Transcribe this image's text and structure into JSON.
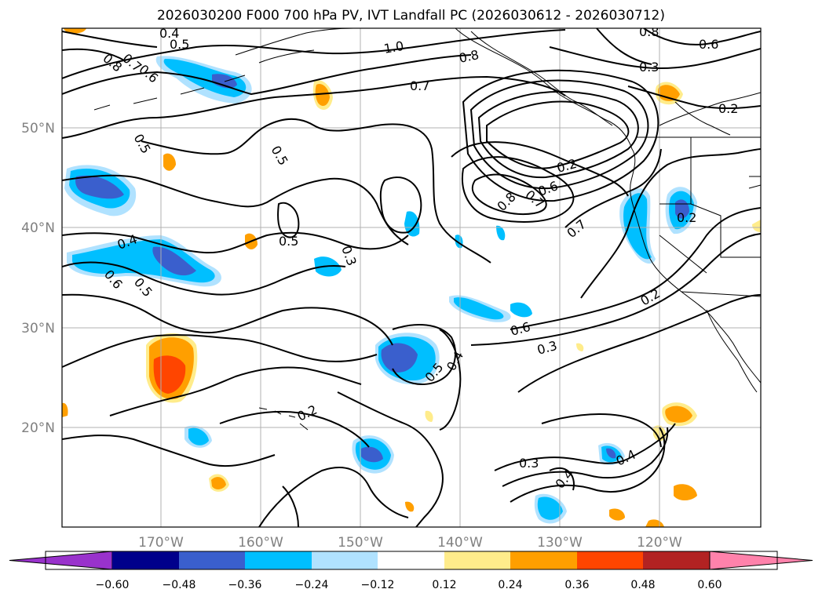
{
  "title": "2026030200 F000 700 hPa PV, IVT Landfall PC (2026030612 - 2026030712)",
  "map": {
    "lat_ticks": [
      "50°N",
      "40°N",
      "30°N",
      "20°N"
    ],
    "lon_ticks": [
      "170°W",
      "160°W",
      "150°W",
      "140°W",
      "130°W",
      "120°W"
    ],
    "contour_labels": [
      "0.4",
      "0.5",
      "0.8",
      "0.7",
      "0.6",
      "1.0",
      "0.8",
      "0.7",
      "0.8",
      "0.6",
      "0.3",
      "0.2",
      "0.5",
      "0.5",
      "0.2",
      "0.8",
      "0.7",
      "0.6",
      "0.5",
      "0.4",
      "0.5",
      "0.6",
      "0.3",
      "0.7",
      "0.2",
      "0.2",
      "0.6",
      "0.3",
      "0.5",
      "0.4",
      "0.2",
      "0.3",
      "0.4",
      "0.4"
    ],
    "colors": {
      "fill_pos": [
        "#ffec8b",
        "#ff9f00",
        "#ff4500"
      ],
      "fill_neg": [
        "#b0e2ff",
        "#00bfff",
        "#3a5fcd"
      ],
      "contour": "#000000",
      "grid": "#b0b0b0"
    }
  },
  "colorbar": {
    "ticks": [
      "−0.60",
      "−0.48",
      "−0.36",
      "−0.24",
      "−0.12",
      "0.12",
      "0.24",
      "0.36",
      "0.48",
      "0.60"
    ],
    "colors": [
      "#9932cc",
      "#00008b",
      "#3a5fcd",
      "#00bfff",
      "#b0e2ff",
      "#ffffff",
      "#ffec8b",
      "#ff9f00",
      "#ff4500",
      "#b22222",
      "#ff82ab"
    ]
  }
}
